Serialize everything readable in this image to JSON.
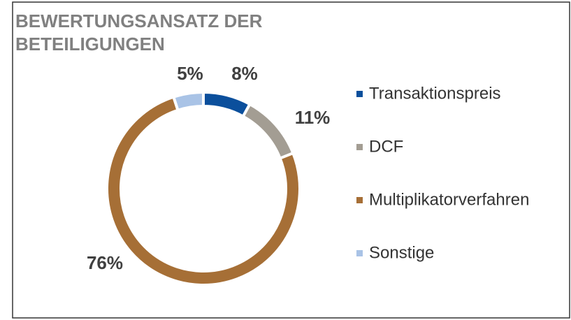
{
  "chart_data": {
    "type": "donut",
    "title": "BEWERTUNGSANSATZ DER BETEILIGUNGEN",
    "categories": [
      "Transaktionspreis",
      "DCF",
      "Multiplikatorverfahren",
      "Sonstige"
    ],
    "values": [
      8,
      11,
      76,
      5
    ],
    "value_labels": [
      "8%",
      "11%",
      "76%",
      "5%"
    ],
    "colors": [
      "#0b4f9c",
      "#a39d93",
      "#a66f36",
      "#a9c3e6"
    ],
    "legend": "right"
  }
}
